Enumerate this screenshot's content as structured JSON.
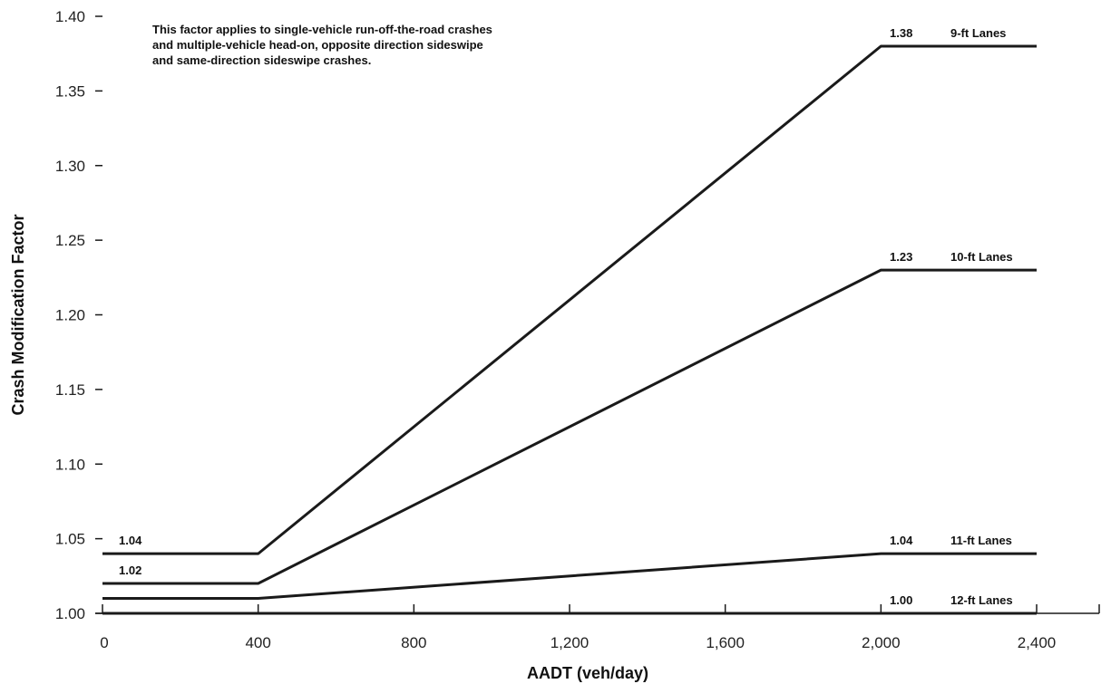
{
  "chart_data": {
    "type": "line",
    "title": "",
    "note": [
      "This factor applies to single-vehicle run-off-the-road crashes",
      "and multiple-vehicle head-on, opposite direction sideswipe",
      "and same-direction sideswipe crashes."
    ],
    "xlabel": "AADT (veh/day)",
    "ylabel": "Crash Modification  Factor",
    "xlim": [
      0,
      2400
    ],
    "ylim": [
      1.0,
      1.4
    ],
    "x_ticks": [
      0,
      400,
      800,
      1200,
      1600,
      2000,
      2400
    ],
    "x_tick_labels": [
      "0",
      "400",
      "800",
      "1,200",
      "1,600",
      "2,000",
      "2,400"
    ],
    "y_ticks": [
      1.0,
      1.05,
      1.1,
      1.15,
      1.2,
      1.25,
      1.3,
      1.35,
      1.4
    ],
    "y_tick_labels": [
      "1.00",
      "1.05",
      "1.10",
      "1.15",
      "1.20",
      "1.25",
      "1.30",
      "1.35",
      "1.40"
    ],
    "grid": false,
    "series": [
      {
        "name": "9-ft Lanes",
        "x": [
          0,
          400,
          2000,
          2400
        ],
        "y": [
          1.04,
          1.04,
          1.38,
          1.38
        ],
        "start_label": "1.04",
        "end_label": "1.38"
      },
      {
        "name": "10-ft Lanes",
        "x": [
          0,
          400,
          2000,
          2400
        ],
        "y": [
          1.02,
          1.02,
          1.23,
          1.23
        ],
        "start_label": "1.02",
        "end_label": "1.23"
      },
      {
        "name": "11-ft Lanes",
        "x": [
          0,
          400,
          2000,
          2400
        ],
        "y": [
          1.01,
          1.01,
          1.04,
          1.04
        ],
        "start_label": "",
        "end_label": "1.04"
      },
      {
        "name": "12-ft Lanes",
        "x": [
          0,
          400,
          2000,
          2400
        ],
        "y": [
          1.0,
          1.0,
          1.0,
          1.0
        ],
        "start_label": "",
        "end_label": "1.00"
      }
    ]
  }
}
